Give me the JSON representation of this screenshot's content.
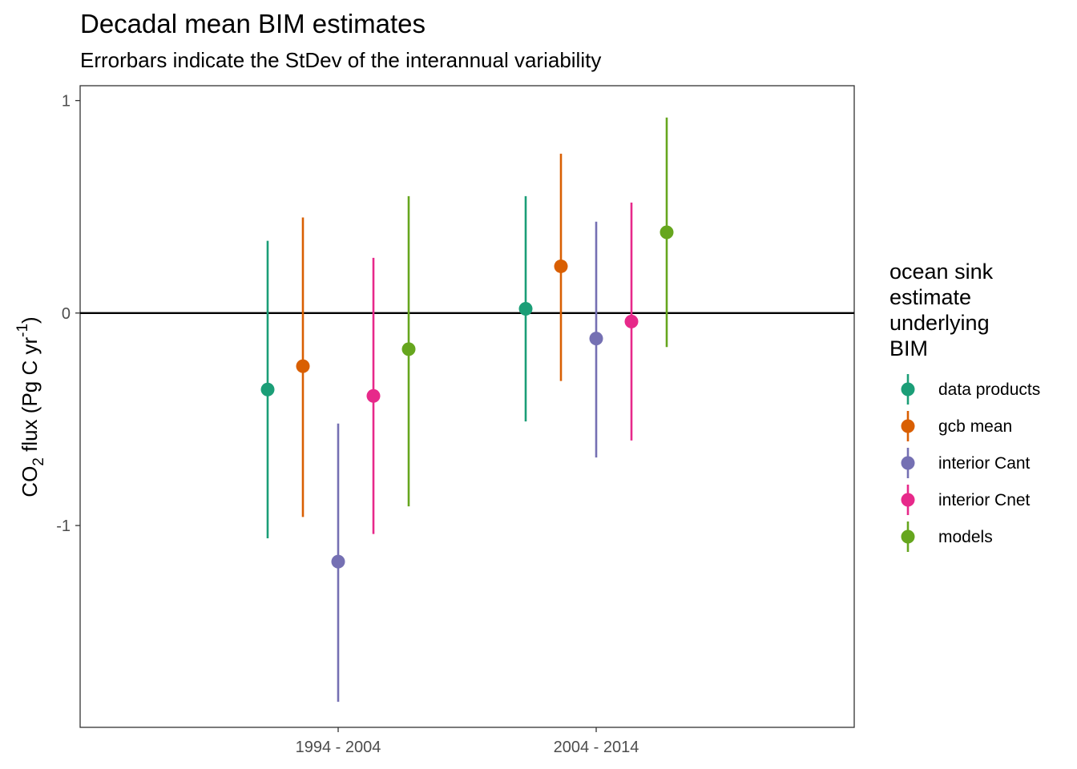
{
  "chart_data": {
    "type": "scatter",
    "title": "Decadal mean BIM estimates",
    "subtitle": "Errorbars indicate the StDev of the interannual variability",
    "ylabel": {
      "main": "CO",
      "sub": "2",
      "mid": " flux (Pg C yr",
      "sup": "-1",
      "end": ")"
    },
    "xlabel": "",
    "categories": [
      "1994 - 2004",
      "2004 - 2014"
    ],
    "ylim": [
      -1.95,
      1.07
    ],
    "yticks": [
      {
        "value": 1,
        "label": "1"
      },
      {
        "value": 0,
        "label": "0"
      },
      {
        "value": -1,
        "label": "-1"
      }
    ],
    "hline": 0,
    "grid": false,
    "legend": {
      "title_lines": [
        "ocean sink",
        "estimate",
        "underlying",
        "BIM"
      ],
      "placement": "right"
    },
    "series": [
      {
        "name": "data products",
        "color": "#1B9E77",
        "values": [
          -0.36,
          0.02
        ],
        "lower": [
          -1.06,
          -0.51
        ],
        "upper": [
          0.34,
          0.55
        ]
      },
      {
        "name": "gcb mean",
        "color": "#D95F02",
        "values": [
          -0.25,
          0.22
        ],
        "lower": [
          -0.96,
          -0.32
        ],
        "upper": [
          0.45,
          0.75
        ]
      },
      {
        "name": "interior Cant",
        "color": "#7570B3",
        "values": [
          -1.17,
          -0.12
        ],
        "lower": [
          -1.83,
          -0.68
        ],
        "upper": [
          -0.52,
          0.43
        ]
      },
      {
        "name": "interior Cnet",
        "color": "#E7298A",
        "values": [
          -0.39,
          -0.04
        ],
        "lower": [
          -1.04,
          -0.6
        ],
        "upper": [
          0.26,
          0.52
        ]
      },
      {
        "name": "models",
        "color": "#66A61E",
        "values": [
          -0.17,
          0.38
        ],
        "lower": [
          -0.91,
          -0.16
        ],
        "upper": [
          0.55,
          0.92
        ]
      }
    ]
  }
}
